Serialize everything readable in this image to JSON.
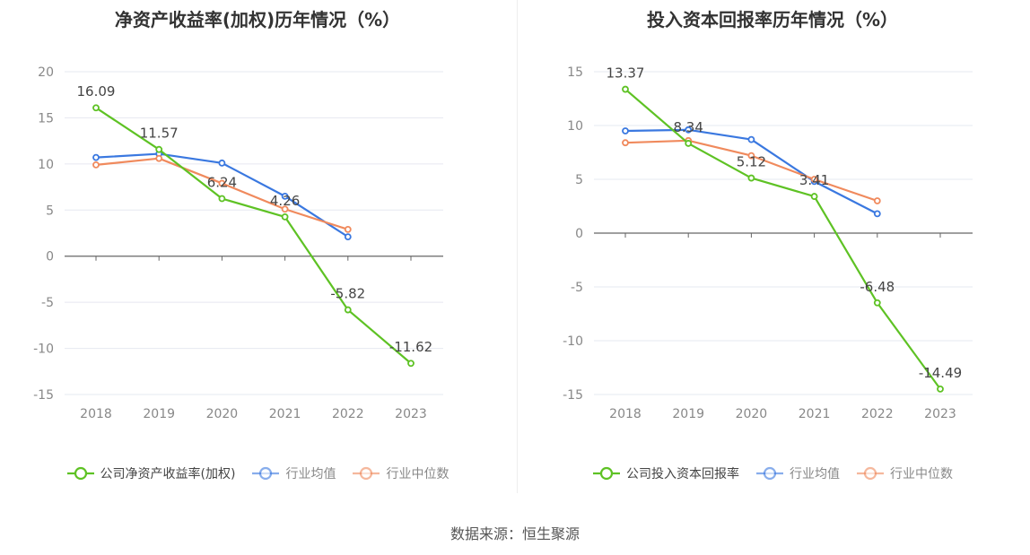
{
  "colors": {
    "company": "#5ec224",
    "average": "#3a78e0",
    "median": "#f08a5d",
    "grid": "#e6e8f0",
    "axis": "#666666",
    "tick_text": "#888888",
    "label_text": "#444444"
  },
  "source": "数据来源：恒生聚源",
  "chart_data": [
    {
      "type": "line",
      "title": "净资产收益率(加权)历年情况（%）",
      "categories": [
        "2018",
        "2019",
        "2020",
        "2021",
        "2022",
        "2023"
      ],
      "ylim": [
        -15,
        20
      ],
      "yticks": [
        20,
        15,
        10,
        5,
        0,
        -5,
        -10,
        -15
      ],
      "ytick_labels": [
        "20",
        "15",
        "10",
        "5",
        "0",
        "-5",
        "-10",
        "-15"
      ],
      "grid": true,
      "legend_position": "bottom",
      "series": [
        {
          "name": "公司净资产收益率(加权)",
          "key": "company",
          "values": [
            16.09,
            11.57,
            6.24,
            4.26,
            -5.82,
            -11.62
          ],
          "labels": [
            "16.09",
            "11.57",
            "6.24",
            "4.26",
            "-5.82",
            "-11.62"
          ]
        },
        {
          "name": "行业均值",
          "key": "average",
          "values": [
            10.7,
            11.1,
            10.1,
            6.5,
            2.1,
            null
          ]
        },
        {
          "name": "行业中位数",
          "key": "median",
          "values": [
            9.9,
            10.6,
            7.9,
            5.1,
            2.9,
            null
          ]
        }
      ]
    },
    {
      "type": "line",
      "title": "投入资本回报率历年情况（%）",
      "categories": [
        "2018",
        "2019",
        "2020",
        "2021",
        "2022",
        "2023"
      ],
      "ylim": [
        -15,
        15
      ],
      "yticks": [
        15,
        10,
        5,
        0,
        -5,
        -10,
        -15
      ],
      "ytick_labels": [
        "15",
        "10",
        "5",
        "0",
        "-5",
        "-10",
        "-15"
      ],
      "grid": true,
      "legend_position": "bottom",
      "series": [
        {
          "name": "公司投入资本回报率",
          "key": "company",
          "values": [
            13.37,
            8.34,
            5.12,
            3.41,
            -6.48,
            -14.49
          ],
          "labels": [
            "13.37",
            "8.34",
            "5.12",
            "3.41",
            "-6.48",
            "-14.49"
          ]
        },
        {
          "name": "行业均值",
          "key": "average",
          "values": [
            9.5,
            9.6,
            8.7,
            4.8,
            1.8,
            null
          ]
        },
        {
          "name": "行业中位数",
          "key": "median",
          "values": [
            8.4,
            8.6,
            7.2,
            5.0,
            3.0,
            null
          ]
        }
      ]
    }
  ]
}
